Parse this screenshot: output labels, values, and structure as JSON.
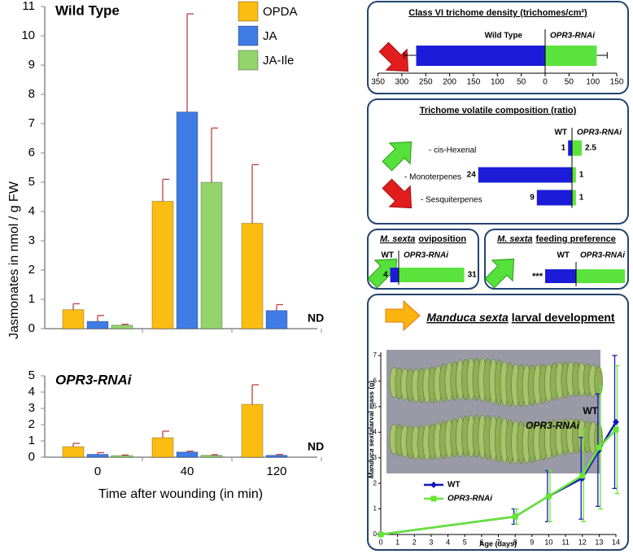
{
  "chart_data": [
    {
      "type": "bar",
      "title": "Wild Type",
      "ylabel": "Jasmonates in nmol / g FW",
      "series": [
        {
          "name": "OPDA",
          "color": "#fbbd12",
          "values": [
            0.65,
            4.35,
            3.6
          ],
          "errors": [
            0.2,
            0.75,
            2.0
          ]
        },
        {
          "name": "JA",
          "color": "#3f7ce6",
          "values": [
            0.25,
            7.4,
            0.62
          ],
          "errors": [
            0.2,
            3.35,
            0.2
          ]
        },
        {
          "name": "JA-Ile",
          "color": "#93d46d",
          "values": [
            0.12,
            5.0,
            null
          ],
          "errors": [
            0.03,
            1.85,
            null
          ]
        }
      ],
      "annotation": "ND",
      "ylim": [
        0,
        11
      ],
      "yticks": [
        0,
        1,
        2,
        3,
        4,
        5,
        6,
        7,
        8,
        9,
        10,
        11
      ]
    },
    {
      "type": "bar",
      "title": "OPR3-RNAi",
      "categories": [
        "0",
        "40",
        "120"
      ],
      "xlabel": "Time after wounding (in min)",
      "series": [
        {
          "color": "#fbbd12",
          "values": [
            0.65,
            1.2,
            3.25
          ],
          "errors": [
            0.2,
            0.4,
            1.2
          ]
        },
        {
          "color": "#3f7ce6",
          "values": [
            0.18,
            0.32,
            0.12
          ],
          "errors": [
            0.1,
            0.05,
            0.05
          ]
        },
        {
          "color": "#93d46d",
          "values": [
            0.1,
            0.12,
            null
          ],
          "errors": [
            0.03,
            0.03,
            null
          ]
        }
      ],
      "annotation": "ND",
      "ylim": [
        0,
        5
      ],
      "yticks": [
        0,
        1,
        2,
        3,
        4,
        5
      ]
    },
    {
      "type": "diverging",
      "title": "Class VI trichome density (trichomes/cm²)",
      "series": [
        {
          "name": "Wild Type",
          "color": "#1c1cd8",
          "value": -270,
          "error": 25
        },
        {
          "name": "OPR3-RNAi",
          "color": "#5ae33c",
          "value": 108,
          "error": 22
        }
      ],
      "xlim": [
        -350,
        150
      ],
      "xticks": [
        {
          "value": -350,
          "label": "350"
        },
        {
          "value": -300,
          "label": "300"
        },
        {
          "value": -250,
          "label": "250"
        },
        {
          "value": -200,
          "label": "200"
        },
        {
          "value": -150,
          "label": "150"
        },
        {
          "value": -100,
          "label": "100"
        },
        {
          "value": -50,
          "label": "50"
        },
        0,
        50,
        100,
        150
      ]
    },
    {
      "type": "ratio",
      "title": "Trichome volatile composition (ratio)",
      "categories": [
        "- cis-Hexenal",
        "- Monoterpenes",
        "- Sesquiterpenes"
      ],
      "series": [
        {
          "name": "WT",
          "color": "#1c1cd8",
          "values": [
            1,
            24,
            9
          ]
        },
        {
          "name": "OPR3-RNAi",
          "color": "#5ae33c",
          "values": [
            2.5,
            1,
            1
          ]
        }
      ]
    },
    {
      "type": "ratio",
      "title": [
        "M. sexta",
        "oviposition"
      ],
      "series": [
        {
          "name": "WT",
          "color": "#1c1cd8",
          "values": [
            4
          ]
        },
        {
          "name": "OPR3-RNAi",
          "color": "#5ae33c",
          "values": [
            31
          ]
        }
      ]
    },
    {
      "type": "preference",
      "title": [
        "M. sexta",
        "feeding preference"
      ],
      "annotation": "***",
      "series": [
        {
          "name": "WT",
          "color": "#1c1cd8"
        },
        {
          "name": "OPR3-RNAi",
          "color": "#5ae33c"
        }
      ]
    },
    {
      "type": "line",
      "title": [
        "Manduca sexta",
        "larval development"
      ],
      "xlabel": "Age (days)",
      "ylabel": [
        "Manduca sexta",
        "larval mass (g)"
      ],
      "inset_labels": [
        "WT",
        "OPR3-RNAi"
      ],
      "x": [
        0,
        8,
        10,
        12,
        13,
        14
      ],
      "series": [
        {
          "name": "WT",
          "color": "#1414c0",
          "values": [
            0,
            0.7,
            1.5,
            2.2,
            3.3,
            4.4
          ],
          "errors": [
            0,
            0.3,
            1.0,
            1.6,
            2.2,
            2.6
          ]
        },
        {
          "name": "OPR3-RNAi",
          "color": "#66e633",
          "values": [
            0,
            0.7,
            1.5,
            2.3,
            3.4,
            4.1
          ],
          "errors": [
            0,
            0.3,
            1.0,
            1.8,
            2.4,
            2.5
          ]
        }
      ],
      "xlim": [
        0,
        14
      ],
      "xticks": [
        0,
        1,
        2,
        3,
        4,
        5,
        6,
        7,
        8,
        9,
        10,
        11,
        12,
        13,
        14
      ],
      "ylim": [
        0,
        7
      ],
      "yticks": [
        0,
        1,
        2,
        3,
        4,
        5,
        6,
        7
      ]
    }
  ]
}
